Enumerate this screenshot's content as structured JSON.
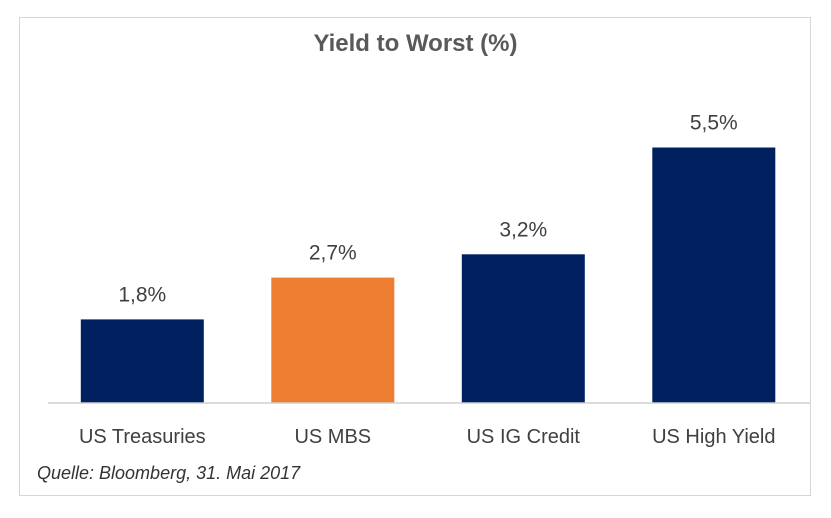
{
  "chart_data": {
    "type": "bar",
    "title": "Yield to Worst (%)",
    "categories": [
      "US Treasuries",
      "US MBS",
      "US IG Credit",
      "US High Yield"
    ],
    "values": [
      1.8,
      2.7,
      3.2,
      5.5
    ],
    "value_labels": [
      "1,8%",
      "2,7%",
      "3,2%",
      "5,5%"
    ],
    "colors": [
      "#002060",
      "#ED7D31",
      "#002060",
      "#002060"
    ],
    "xlabel": "",
    "ylabel": "",
    "ylim": [
      0,
      6
    ],
    "grid": false,
    "legend": "none"
  },
  "source": "Quelle: Bloomberg, 31. Mai 2017"
}
